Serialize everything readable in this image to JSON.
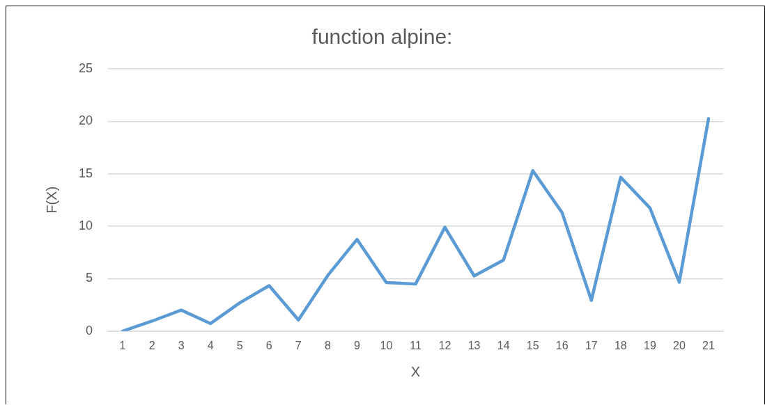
{
  "chart_data": {
    "type": "line",
    "title": "function alpine:",
    "xlabel": "X",
    "ylabel": "F(X)",
    "x": [
      1,
      2,
      3,
      4,
      5,
      6,
      7,
      8,
      9,
      10,
      11,
      12,
      13,
      14,
      15,
      16,
      17,
      18,
      19,
      20,
      21
    ],
    "series": [
      {
        "color": "#5b9bd5",
        "values": [
          0,
          0.95,
          2.0,
          0.72,
          2.7,
          4.33,
          1.07,
          5.3,
          8.74,
          4.63,
          4.49,
          9.9,
          5.26,
          6.77,
          15.3,
          11.3,
          2.93,
          14.67,
          11.74,
          4.67,
          20.26
        ]
      }
    ],
    "xlim": [
      0.5,
      21.5
    ],
    "xticks": [
      1,
      2,
      3,
      4,
      5,
      6,
      7,
      8,
      9,
      10,
      11,
      12,
      13,
      14,
      15,
      16,
      17,
      18,
      19,
      20,
      21
    ],
    "ylim": [
      0,
      25
    ],
    "yticks": [
      0,
      5,
      10,
      15,
      20,
      25
    ],
    "grid": "y",
    "legend": false,
    "marker": "none",
    "line_style": "solid"
  }
}
